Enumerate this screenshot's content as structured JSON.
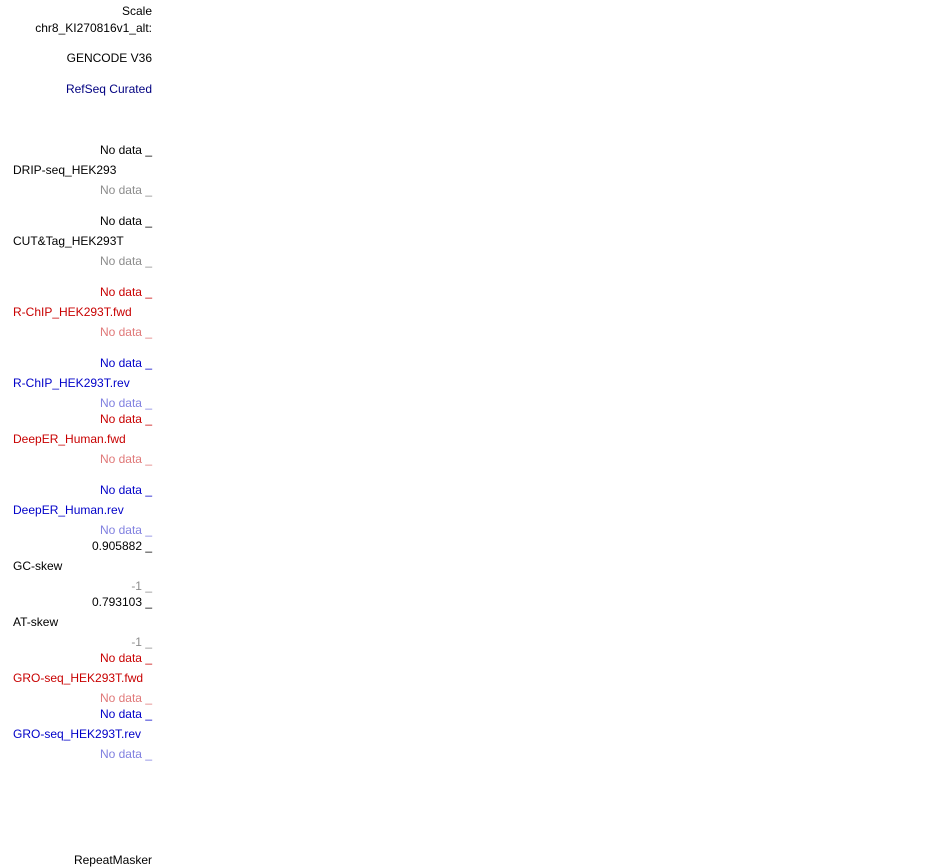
{
  "browser": {
    "scale_label": "Scale",
    "chrom_label": "chr8_KI270816v1_alt:"
  },
  "colors": {
    "black": "#000000",
    "gray": "#8c8c8c",
    "navy": "#000080",
    "blue": "#0000c8",
    "light_blue": "#8080e0",
    "red": "#c80000",
    "light_red": "#e07878"
  },
  "tracks": {
    "gencode": {
      "label": "GENCODE V36"
    },
    "refseq": {
      "label": "RefSeq Curated"
    },
    "drip": {
      "label": "DRIP-seq_HEK293",
      "max": "No data _",
      "min": "No data _"
    },
    "cuttag": {
      "label": "CUT&Tag_HEK293T",
      "max": "No data _",
      "min": "No data _"
    },
    "rchip_fwd": {
      "label": "R-ChIP_HEK293T.fwd",
      "max": "No data _",
      "min": "No data _"
    },
    "rchip_rev": {
      "label": "R-ChIP_HEK293T.rev",
      "max": "No data _",
      "min": "No data _"
    },
    "deeper_fwd": {
      "label": "DeepER_Human.fwd",
      "max": "No data _",
      "min": "No data _"
    },
    "deeper_rev": {
      "label": "DeepER_Human.rev",
      "max": "No data _",
      "min": "No data _"
    },
    "gc_skew": {
      "label": "GC-skew",
      "max": "0.905882 _",
      "min": "-1 _"
    },
    "at_skew": {
      "label": "AT-skew",
      "max": "0.793103 _",
      "min": "-1 _"
    },
    "groseq_fwd": {
      "label": "GRO-seq_HEK293T.fwd",
      "max": "No data _",
      "min": "No data _"
    },
    "groseq_rev": {
      "label": "GRO-seq_HEK293T.rev",
      "max": "No data _",
      "min": "No data _"
    },
    "repeatmasker": {
      "label": "RepeatMasker"
    }
  }
}
